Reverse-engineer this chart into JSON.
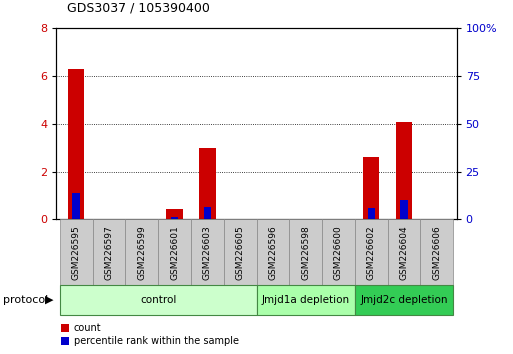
{
  "title": "GDS3037 / 105390400",
  "samples": [
    "GSM226595",
    "GSM226597",
    "GSM226599",
    "GSM226601",
    "GSM226603",
    "GSM226605",
    "GSM226596",
    "GSM226598",
    "GSM226600",
    "GSM226602",
    "GSM226604",
    "GSM226606"
  ],
  "count_values": [
    6.3,
    0,
    0,
    0.45,
    3.0,
    0,
    0,
    0,
    0,
    2.6,
    4.1,
    0
  ],
  "percentile_values": [
    14.0,
    0,
    0,
    1.5,
    6.5,
    0,
    0,
    0,
    0,
    6.0,
    10.0,
    0
  ],
  "left_ylim": [
    0,
    8
  ],
  "left_yticks": [
    0,
    2,
    4,
    6,
    8
  ],
  "right_ylim": [
    0,
    100
  ],
  "right_yticks": [
    0,
    25,
    50,
    75,
    100
  ],
  "right_yticklabels": [
    "0",
    "25",
    "50",
    "75",
    "100%"
  ],
  "bar_color_count": "#cc0000",
  "bar_color_percentile": "#0000cc",
  "bar_width": 0.5,
  "protocol_groups": [
    {
      "label": "control",
      "start": 0,
      "end": 5,
      "color": "#ccffcc"
    },
    {
      "label": "Jmjd1a depletion",
      "start": 6,
      "end": 8,
      "color": "#aaffaa"
    },
    {
      "label": "Jmjd2c depletion",
      "start": 9,
      "end": 11,
      "color": "#33cc55"
    }
  ],
  "protocol_label": "protocol",
  "legend_count_label": "count",
  "legend_percentile_label": "percentile rank within the sample",
  "bg_color": "#ffffff",
  "plot_bg_color": "#ffffff",
  "spine_color": "#000000",
  "tick_label_color_left": "#cc0000",
  "tick_label_color_right": "#0000cc",
  "sample_box_color": "#cccccc",
  "sample_box_edge": "#888888"
}
